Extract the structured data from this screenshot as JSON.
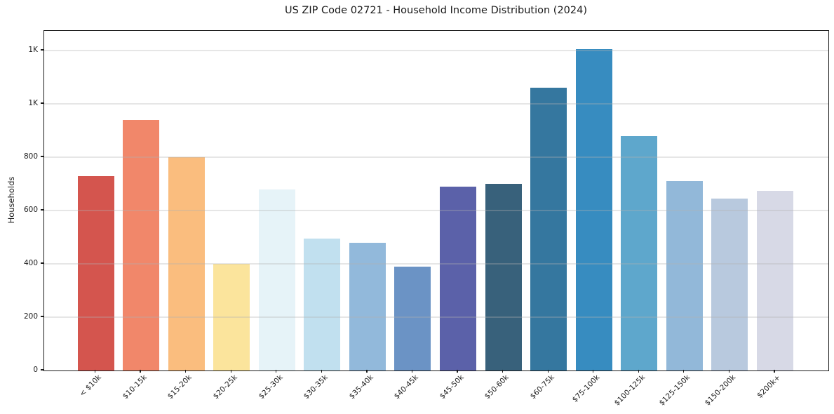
{
  "chart_data": {
    "type": "bar",
    "title": "US ZIP Code 02721 - Household Income Distribution (2024)",
    "xlabel": "",
    "ylabel": "Households",
    "categories": [
      "< $10k",
      "$10-15k",
      "$15-20k",
      "$20-25k",
      "$25-30k",
      "$30-35k",
      "$35-40k",
      "$40-45k",
      "$45-50k",
      "$50-60k",
      "$60-75k",
      "$75-100k",
      "$100-125k",
      "$125-150k",
      "$150-200k",
      "$200k+"
    ],
    "values": [
      730,
      940,
      800,
      400,
      680,
      495,
      480,
      390,
      690,
      700,
      1060,
      1205,
      880,
      710,
      645,
      675
    ],
    "bar_colors": [
      "#d4554e",
      "#f1876a",
      "#fabd7e",
      "#fbe49c",
      "#e6f3f8",
      "#c1e0ef",
      "#92b9db",
      "#6b93c5",
      "#5b61a9",
      "#38617b",
      "#35779f",
      "#378cc0",
      "#5ea7cc",
      "#92b8d9",
      "#b8c9de",
      "#d7d9e6"
    ],
    "ylim": [
      0,
      1273
    ],
    "yticks": [
      {
        "value": 0,
        "label": "0"
      },
      {
        "value": 200,
        "label": "200"
      },
      {
        "value": 400,
        "label": "400"
      },
      {
        "value": 600,
        "label": "600"
      },
      {
        "value": 800,
        "label": "800"
      },
      {
        "value": 1000,
        "label": "1K"
      },
      {
        "value": 1200,
        "label": "1K"
      }
    ],
    "grid": "horizontal",
    "legend": "none",
    "grid_color": "#b0b0b0",
    "frame_color": "#1a1a1a",
    "text_color": "#1a1a1a"
  }
}
